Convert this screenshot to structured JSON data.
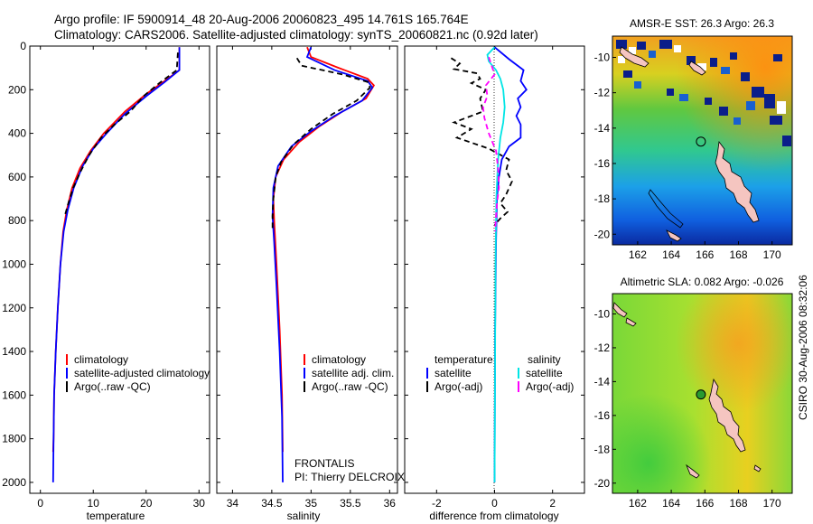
{
  "title": {
    "line1": "Argo profile: IF 5900914_48 20-Aug-2006 20060823_495 14.761S 165.764E",
    "line2": "Climatology: CARS2006. Satellite-adjusted climatology: synTS_20060821.nc (0.92d later)"
  },
  "side_label": "CSIRO 30-Aug-2006 08:32:06",
  "colors": {
    "climatology": "#ff0000",
    "satellite": "#0000ff",
    "argo": "#000000",
    "sal_satellite": "#00e5e5",
    "sal_argo": "#ff00ff"
  },
  "chart_data": [
    {
      "type": "line",
      "xlabel": "temperature",
      "ylim": [
        2050,
        0
      ],
      "xlim": [
        -2,
        32
      ],
      "xticks": [
        "0",
        "10",
        "20",
        "30"
      ],
      "xtick_values": [
        0,
        10,
        20,
        30
      ],
      "yticks": [
        "0",
        "200",
        "400",
        "600",
        "800",
        "1000",
        "1200",
        "1400",
        "1600",
        "1800",
        "2000"
      ],
      "ytick_values": [
        0,
        200,
        400,
        600,
        800,
        1000,
        1200,
        1400,
        1600,
        1800,
        2000
      ],
      "series": [
        {
          "name": "climatology",
          "color": "#ff0000",
          "dash": false,
          "points": [
            [
              26.3,
              5
            ],
            [
              26.3,
              110
            ],
            [
              23.5,
              160
            ],
            [
              20,
              220
            ],
            [
              16,
              300
            ],
            [
              12,
              400
            ],
            [
              9.5,
              480
            ],
            [
              7.5,
              560
            ],
            [
              6,
              650
            ],
            [
              5,
              750
            ],
            [
              4.3,
              850
            ],
            [
              3.8,
              1000
            ],
            [
              3.3,
              1200
            ],
            [
              2.9,
              1400
            ],
            [
              2.6,
              1600
            ],
            [
              2.5,
              1800
            ],
            [
              2.4,
              1860
            ]
          ]
        },
        {
          "name": "satellite-adjusted climatology",
          "color": "#0000ff",
          "dash": false,
          "points": [
            [
              26.3,
              5
            ],
            [
              26.3,
              110
            ],
            [
              23.5,
              165
            ],
            [
              20,
              230
            ],
            [
              16,
              310
            ],
            [
              12.5,
              400
            ],
            [
              10,
              470
            ],
            [
              8,
              550
            ],
            [
              6.3,
              650
            ],
            [
              5.2,
              750
            ],
            [
              4.4,
              850
            ],
            [
              3.8,
              1000
            ],
            [
              3.3,
              1200
            ],
            [
              2.9,
              1400
            ],
            [
              2.6,
              1600
            ],
            [
              2.5,
              1800
            ],
            [
              2.4,
              2000
            ]
          ]
        },
        {
          "name": "Argo(..raw -QC)",
          "color": "#000000",
          "dash": true,
          "points": [
            [
              26,
              30
            ],
            [
              25.8,
              110
            ],
            [
              22.5,
              170
            ],
            [
              19.5,
              230
            ],
            [
              17,
              300
            ],
            [
              14,
              360
            ],
            [
              11.5,
              420
            ],
            [
              9.2,
              500
            ],
            [
              7.5,
              580
            ],
            [
              6.2,
              650
            ],
            [
              5.3,
              720
            ],
            [
              4.6,
              780
            ]
          ]
        }
      ],
      "legend": [
        "climatology",
        "satellite-adjusted climatology",
        "Argo(..raw -QC)"
      ]
    },
    {
      "type": "line",
      "xlabel": "salinity",
      "ylim": [
        2050,
        0
      ],
      "xlim": [
        33.8,
        36.1
      ],
      "xticks": [
        "34",
        "34.5",
        "35",
        "35.5",
        "36"
      ],
      "xtick_values": [
        34,
        34.5,
        35,
        35.5,
        36
      ],
      "series": [
        {
          "name": "climatology",
          "color": "#ff0000",
          "dash": false,
          "points": [
            [
              34.95,
              5
            ],
            [
              35.0,
              50
            ],
            [
              35.35,
              100
            ],
            [
              35.72,
              150
            ],
            [
              35.8,
              180
            ],
            [
              35.7,
              240
            ],
            [
              35.4,
              300
            ],
            [
              35.1,
              370
            ],
            [
              34.85,
              440
            ],
            [
              34.65,
              520
            ],
            [
              34.55,
              600
            ],
            [
              34.52,
              700
            ],
            [
              34.53,
              800
            ],
            [
              34.56,
              1000
            ],
            [
              34.6,
              1300
            ],
            [
              34.63,
              1600
            ],
            [
              34.64,
              1860
            ]
          ]
        },
        {
          "name": "satellite adj. clim.",
          "color": "#0000ff",
          "dash": false,
          "points": [
            [
              35.0,
              5
            ],
            [
              34.95,
              50
            ],
            [
              35.3,
              110
            ],
            [
              35.72,
              160
            ],
            [
              35.78,
              190
            ],
            [
              35.65,
              250
            ],
            [
              35.3,
              320
            ],
            [
              35.0,
              390
            ],
            [
              34.75,
              460
            ],
            [
              34.58,
              550
            ],
            [
              34.52,
              650
            ],
            [
              34.51,
              780
            ],
            [
              34.53,
              900
            ],
            [
              34.56,
              1100
            ],
            [
              34.6,
              1400
            ],
            [
              34.63,
              1700
            ],
            [
              34.64,
              2000
            ]
          ]
        },
        {
          "name": "Argo(..raw -QC)",
          "color": "#000000",
          "dash": true,
          "points": [
            [
              34.82,
              55
            ],
            [
              34.88,
              90
            ],
            [
              35.4,
              130
            ],
            [
              35.72,
              165
            ],
            [
              35.75,
              190
            ],
            [
              35.58,
              250
            ],
            [
              35.28,
              310
            ],
            [
              35.0,
              380
            ],
            [
              34.78,
              450
            ],
            [
              34.62,
              530
            ],
            [
              34.55,
              600
            ],
            [
              34.52,
              700
            ],
            [
              34.51,
              780
            ],
            [
              34.51,
              850
            ]
          ]
        }
      ],
      "legend": [
        "climatology",
        "satellite adj. clim.",
        "Argo(..raw -QC)"
      ],
      "annotations": [
        "FRONTALIS",
        "PI: Thierry DELCROIX"
      ]
    },
    {
      "type": "line",
      "xlabel": "difference from climatology",
      "ylim": [
        2050,
        0
      ],
      "xlim": [
        -3.1,
        3.1
      ],
      "xticks": [
        "-2",
        "0",
        "2"
      ],
      "xtick_values": [
        -2,
        0,
        2
      ],
      "series": [
        {
          "name": "satellite",
          "group": "temperature",
          "color": "#0000ff",
          "dash": false,
          "points": [
            [
              0,
              5
            ],
            [
              0.5,
              60
            ],
            [
              1.0,
              110
            ],
            [
              0.9,
              160
            ],
            [
              1.1,
              200
            ],
            [
              0.8,
              240
            ],
            [
              0.9,
              280
            ],
            [
              0.75,
              320
            ],
            [
              0.9,
              360
            ],
            [
              0.9,
              420
            ],
            [
              0.5,
              460
            ],
            [
              0.25,
              520
            ],
            [
              0.15,
              600
            ],
            [
              0.08,
              700
            ],
            [
              0.05,
              900
            ],
            [
              0.02,
              1300
            ],
            [
              0,
              2000
            ]
          ]
        },
        {
          "name": "Argo(-adj)",
          "group": "temperature",
          "color": "#000000",
          "dash": true,
          "points": [
            [
              -1.5,
              55
            ],
            [
              -1.2,
              80
            ],
            [
              -1.4,
              105
            ],
            [
              -0.6,
              125
            ],
            [
              -0.5,
              150
            ],
            [
              -0.8,
              170
            ],
            [
              -0.3,
              200
            ],
            [
              -0.5,
              240
            ],
            [
              -0.4,
              300
            ],
            [
              -1.4,
              350
            ],
            [
              -0.8,
              380
            ],
            [
              -1.3,
              420
            ],
            [
              -0.2,
              470
            ],
            [
              0.5,
              520
            ],
            [
              0.4,
              570
            ],
            [
              0.6,
              620
            ],
            [
              0.4,
              680
            ],
            [
              0.2,
              720
            ],
            [
              0.45,
              760
            ],
            [
              0.2,
              790
            ],
            [
              0,
              820
            ]
          ]
        },
        {
          "name": "satellite",
          "group": "salinity",
          "color": "#00e5e5",
          "dash": false,
          "points": [
            [
              0,
              5
            ],
            [
              -0.25,
              40
            ],
            [
              -0.2,
              70
            ],
            [
              0.05,
              110
            ],
            [
              0.2,
              150
            ],
            [
              0.3,
              200
            ],
            [
              0.35,
              280
            ],
            [
              0.3,
              350
            ],
            [
              0.2,
              420
            ],
            [
              0.12,
              520
            ],
            [
              0.06,
              700
            ],
            [
              0.03,
              1000
            ],
            [
              0,
              2000
            ]
          ]
        },
        {
          "name": "Argo(-adj)",
          "group": "salinity",
          "color": "#ff00ff",
          "dash": true,
          "points": [
            [
              -0.2,
              50
            ],
            [
              -0.1,
              90
            ],
            [
              0,
              130
            ],
            [
              -0.3,
              180
            ],
            [
              -0.25,
              230
            ],
            [
              -0.4,
              280
            ],
            [
              -0.35,
              330
            ],
            [
              -0.2,
              400
            ],
            [
              0.05,
              480
            ],
            [
              0.12,
              560
            ],
            [
              0.15,
              650
            ],
            [
              0.08,
              720
            ],
            [
              0.05,
              780
            ],
            [
              0.02,
              850
            ]
          ]
        }
      ],
      "legend_headers": [
        "temperature",
        "salinity"
      ],
      "legend": [
        "satellite",
        "Argo(-adj)",
        "satellite",
        "Argo(-adj)"
      ]
    },
    {
      "type": "heatmap",
      "title": "AMSR-E SST: 26.3 Argo: 26.3",
      "xticks": [
        "162",
        "164",
        "166",
        "168",
        "170"
      ],
      "yticks": [
        "-10",
        "-12",
        "-14",
        "-16",
        "-18",
        "-20"
      ],
      "marker": {
        "lon": 165.764,
        "lat": -14.761
      }
    },
    {
      "type": "heatmap",
      "title": "Altimetric SLA: 0.082 Argo: -0.026",
      "xticks": [
        "162",
        "164",
        "166",
        "168",
        "170"
      ],
      "yticks": [
        "-10",
        "-12",
        "-14",
        "-16",
        "-18",
        "-20"
      ],
      "marker": {
        "lon": 165.764,
        "lat": -14.761
      }
    }
  ]
}
